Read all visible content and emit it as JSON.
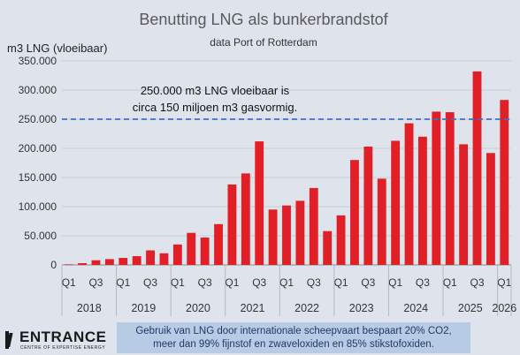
{
  "chart_data": {
    "type": "bar",
    "title": "Benutting LNG als bunkerbrandstof",
    "subtitle": "data Port of Rotterdam",
    "ylabel": "m3 LNG (vloeibaar)",
    "ylim": [
      0,
      350000
    ],
    "yticks": [
      "0",
      "50.000",
      "100.000",
      "150.000",
      "200.000",
      "250.000",
      "300.000",
      "350.000"
    ],
    "grid": true,
    "categories": [
      "Q1",
      "Q2",
      "Q3",
      "Q4",
      "Q1",
      "Q2",
      "Q3",
      "Q4",
      "Q1",
      "Q2",
      "Q3",
      "Q4",
      "Q1",
      "Q2",
      "Q3",
      "Q4",
      "Q1",
      "Q2",
      "Q3",
      "Q4",
      "Q1",
      "Q2",
      "Q3",
      "Q4",
      "Q1",
      "Q2",
      "Q3",
      "Q4",
      "Q1",
      "Q2",
      "Q3",
      "Q4",
      "Q1"
    ],
    "years": [
      "2018",
      "2019",
      "2020",
      "2021",
      "2022",
      "2023",
      "2024",
      "2025",
      "2026"
    ],
    "values": [
      1000,
      3000,
      8000,
      10000,
      12000,
      15000,
      25000,
      20000,
      35000,
      55000,
      47000,
      70000,
      138000,
      157000,
      212000,
      95000,
      102000,
      110000,
      132000,
      58000,
      85000,
      180000,
      203000,
      148000,
      213000,
      243000,
      220000,
      263000,
      262000,
      207000,
      332000,
      192000,
      283000
    ],
    "bar_color": "#e01f26",
    "reference_line": {
      "value": 250000,
      "color": "#3d6fc6",
      "annotation": [
        "250.000 m3 LNG vloeibaar is",
        "circa 150 miljoen m3 gasvormig."
      ]
    }
  },
  "footer": {
    "note": [
      "Gebruik van LNG door internationale scheepvaart bespaart 20% CO2,",
      "meer dan 99% fijnstof en zwaveloxiden en 85% stikstofoxiden."
    ]
  },
  "logo": {
    "name": "ENTRANCE",
    "tagline": "CENTRE OF EXPERTISE ENERGY"
  }
}
